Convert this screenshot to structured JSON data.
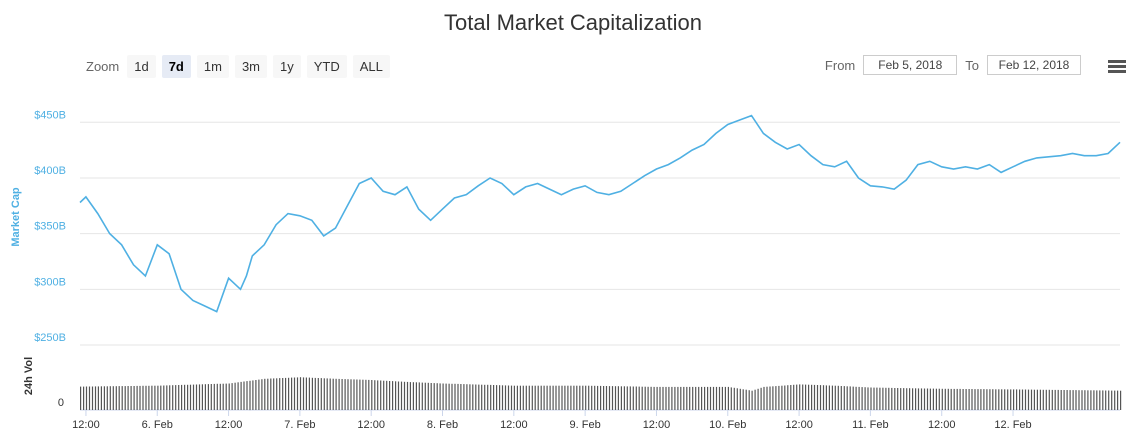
{
  "header": {
    "title": "Total Market Capitalization"
  },
  "toolbar": {
    "zoom_label": "Zoom",
    "zoom_buttons": [
      "1d",
      "7d",
      "1m",
      "3m",
      "1y",
      "YTD",
      "ALL"
    ],
    "active_zoom": "7d",
    "from_label": "From",
    "from_value": "Feb 5, 2018",
    "to_label": "To",
    "to_value": "Feb 12, 2018"
  },
  "colors": {
    "line": "#4fb0e3",
    "axis_label": "#4fb0e3",
    "volume": "#555555"
  },
  "chart_data": {
    "type": "line",
    "ylabel": "Market Cap",
    "volume_label": "24h Vol",
    "y_ticks": [
      "$250B",
      "$300B",
      "$350B",
      "$400B",
      "$450B"
    ],
    "ylim": [
      250,
      470
    ],
    "volume_ticks": [
      "0"
    ],
    "x_ticks": [
      "12:00",
      "6. Feb",
      "12:00",
      "7. Feb",
      "12:00",
      "8. Feb",
      "12:00",
      "9. Feb",
      "12:00",
      "10. Feb",
      "12:00",
      "11. Feb",
      "12:00",
      "12. Feb"
    ],
    "x_tick_times": [
      -12,
      0,
      12,
      24,
      36,
      48,
      60,
      72,
      84,
      96,
      108,
      120,
      132,
      144
    ],
    "x_start_time": -13,
    "x_end_time": 162,
    "series": [
      {
        "times": [
          -13,
          -12,
          -10,
          -8,
          -6,
          -4,
          -2,
          0,
          2,
          4,
          6,
          8,
          10,
          12,
          14,
          15,
          16,
          18,
          20,
          22,
          24,
          26,
          28,
          30,
          32,
          34,
          36,
          38,
          40,
          42,
          44,
          46,
          48,
          50,
          52,
          54,
          56,
          58,
          60,
          62,
          64,
          66,
          68,
          70,
          72,
          74,
          76,
          78,
          80,
          82,
          84,
          86,
          88,
          90,
          92,
          94,
          96,
          98,
          100,
          102,
          104,
          106,
          108,
          110,
          112,
          114,
          116,
          118,
          120,
          122,
          124,
          126,
          128,
          130,
          132,
          134,
          136,
          138,
          140,
          142,
          144,
          146,
          148,
          150,
          152,
          154,
          156,
          158,
          160,
          162
        ],
        "values": [
          378,
          383,
          368,
          350,
          340,
          322,
          312,
          340,
          332,
          300,
          290,
          285,
          280,
          310,
          300,
          312,
          330,
          340,
          358,
          368,
          366,
          362,
          348,
          355,
          375,
          395,
          400,
          388,
          385,
          392,
          372,
          362,
          372,
          382,
          385,
          393,
          400,
          395,
          385,
          392,
          395,
          390,
          385,
          390,
          393,
          387,
          385,
          388,
          395,
          402,
          408,
          412,
          418,
          425,
          430,
          440,
          448,
          452,
          456,
          440,
          432,
          426,
          430,
          420,
          412,
          410,
          415,
          400,
          393,
          392,
          390,
          398,
          412,
          415,
          410,
          408,
          410,
          408,
          412,
          405,
          410,
          415,
          418,
          419,
          420,
          422,
          420,
          420,
          422,
          432
        ]
      }
    ],
    "volume": {
      "times": [
        -13,
        0,
        12,
        18,
        24,
        30,
        36,
        42,
        48,
        60,
        72,
        84,
        96,
        100,
        102,
        108,
        114,
        120,
        132,
        144,
        162
      ],
      "values": [
        0.75,
        0.78,
        0.85,
        1.0,
        1.05,
        1.0,
        0.96,
        0.9,
        0.85,
        0.78,
        0.78,
        0.74,
        0.74,
        0.62,
        0.74,
        0.82,
        0.78,
        0.72,
        0.68,
        0.66,
        0.62
      ]
    }
  }
}
